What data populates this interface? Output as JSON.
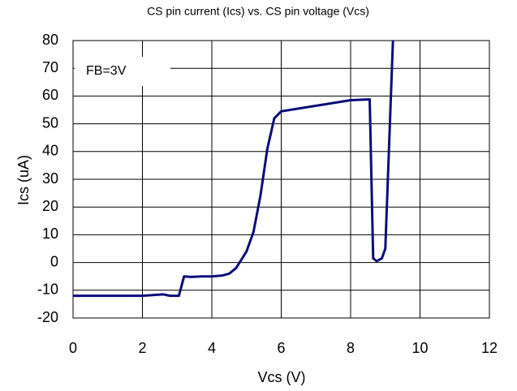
{
  "chart_data": {
    "type": "line",
    "title": "CS pin current (Ics) vs. CS pin voltage (Vcs)",
    "x_label": "Vcs (V)",
    "y_label": "Ics (uA)",
    "annotation": "FB=3V",
    "x": [
      0,
      1,
      2,
      2.6,
      2.8,
      3.05,
      3.2,
      3.4,
      3.7,
      4.0,
      4.3,
      4.5,
      4.7,
      4.9,
      5.0,
      5.2,
      5.4,
      5.6,
      5.8,
      6.0,
      7.0,
      8.0,
      8.55,
      8.65,
      8.75,
      8.9,
      9.0,
      9.22
    ],
    "values": [
      -12,
      -12,
      -12,
      -11.5,
      -12,
      -12,
      -5,
      -5.2,
      -5,
      -5,
      -4.7,
      -4,
      -2,
      2,
      4,
      11,
      24,
      41,
      52,
      54.5,
      56.5,
      58.5,
      58.8,
      1.5,
      0.5,
      1.5,
      5,
      80
    ],
    "color": "#0c0c7a",
    "xlim": [
      0,
      12
    ],
    "xticks": [
      0,
      2,
      4,
      6,
      8,
      10,
      12
    ],
    "ylim": [
      -20,
      80
    ],
    "yticks": [
      -20,
      -10,
      0,
      10,
      20,
      30,
      40,
      50,
      60,
      70,
      80
    ],
    "grid": true
  }
}
